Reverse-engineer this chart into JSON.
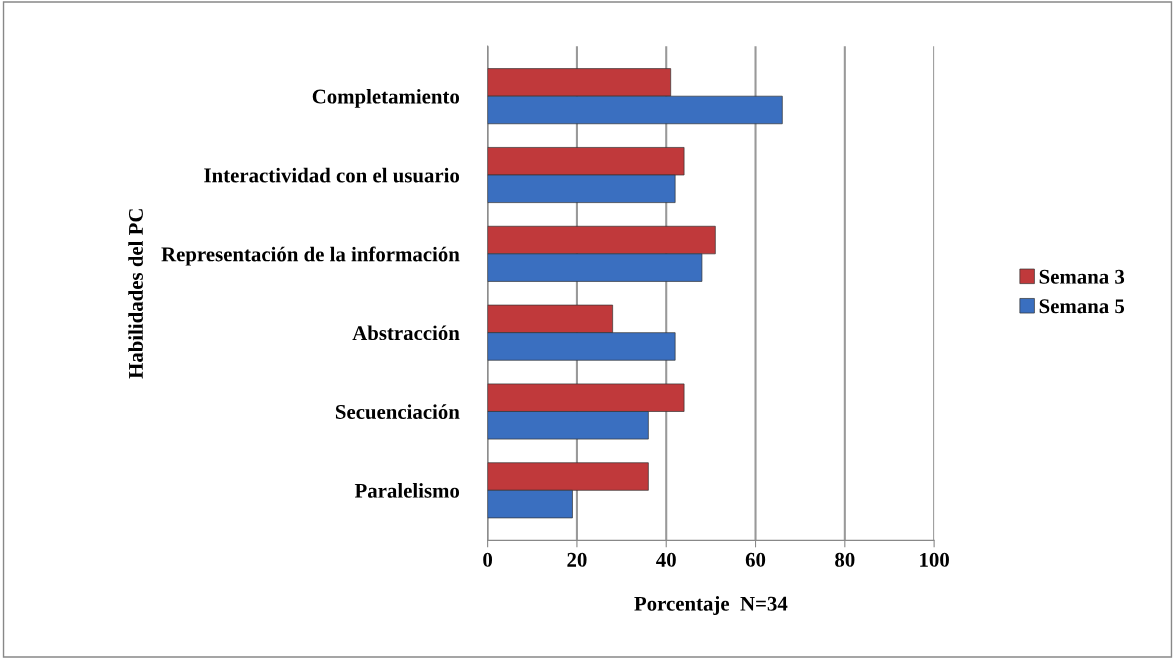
{
  "chart_data": {
    "type": "bar",
    "orientation": "horizontal",
    "xlabel": "Porcentaje  N=34",
    "ylabel": "Habilidades del PC",
    "categories": [
      "Completamiento",
      "Interactividad con el usuario",
      "Representación de la información",
      "Abstracción",
      "Secuenciación",
      "Paralelismo"
    ],
    "series": [
      {
        "name": "Semana 3",
        "color": "#c0393b",
        "values": [
          41,
          44,
          51,
          28,
          44,
          36
        ]
      },
      {
        "name": "Semana 5",
        "color": "#3a6fc0",
        "values": [
          66,
          42,
          48,
          42,
          36,
          19
        ]
      }
    ],
    "xlim": [
      0,
      100
    ],
    "xticks": [
      0,
      20,
      40,
      60,
      80,
      100
    ],
    "grid": "x",
    "legend": "right"
  }
}
